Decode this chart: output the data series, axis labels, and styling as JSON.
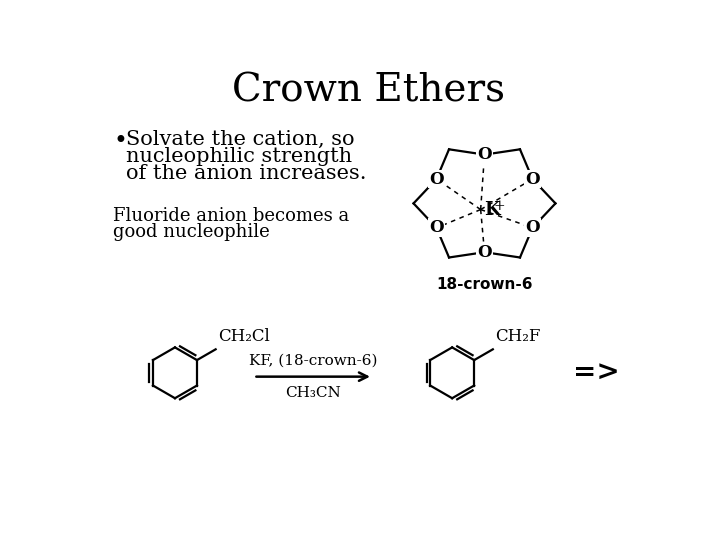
{
  "title": "Crown Ethers",
  "title_fontsize": 28,
  "background_color": "#ffffff",
  "bullet_text_line1": "Solvate the cation, so",
  "bullet_text_line2": "nucleophilic strength",
  "bullet_text_line3": "of the anion increases.",
  "bullet_fontsize": 15,
  "sub_text_line1": "Fluoride anion becomes a",
  "sub_text_line2": "good nucleophile",
  "sub_fontsize": 13,
  "label_18crown6": "18-crown-6",
  "reaction_reagent1": "KF, (18-crown-6)",
  "reaction_reagent2": "CH₃CN",
  "label_ch2cl": "CH₂Cl",
  "label_ch2f": "CH₂F",
  "label_arrow": "=>"
}
